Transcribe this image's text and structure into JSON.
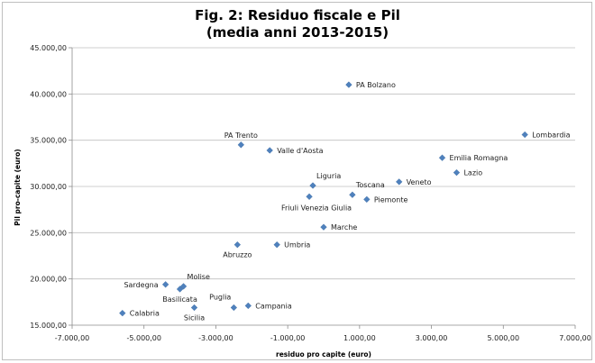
{
  "chart_data": {
    "type": "scatter",
    "title": "Fig. 2: Residuo fiscale e Pil",
    "subtitle": "(media anni 2013-2015)",
    "xlabel": "residuo pro capite (euro)",
    "ylabel": "Pil pro-capite (euro)",
    "xlim": [
      -7000,
      7000
    ],
    "ylim": [
      15000,
      45000
    ],
    "xticks": [
      -7000,
      -5000,
      -3000,
      -1000,
      1000,
      3000,
      5000,
      7000
    ],
    "xtick_labels": [
      "-7.000,00",
      "-5.000,00",
      "-3.000,00",
      "-1.000,00",
      "1.000,00",
      "3.000,00",
      "5.000,00",
      "7.000,00"
    ],
    "yticks": [
      15000,
      20000,
      25000,
      30000,
      35000,
      40000,
      45000
    ],
    "ytick_labels": [
      "15.000,00",
      "20.000,00",
      "25.000,00",
      "30.000,00",
      "35.000,00",
      "40.000,00",
      "45.000,00"
    ],
    "grid": "horizontal",
    "marker": "diamond",
    "color": "#4f81bd",
    "points": [
      {
        "label": "PA Bolzano",
        "x": 700,
        "y": 41000,
        "pos": "right"
      },
      {
        "label": "Lombardia",
        "x": 5600,
        "y": 35600,
        "pos": "right"
      },
      {
        "label": "PA Trento",
        "x": -2300,
        "y": 34500,
        "pos": "above"
      },
      {
        "label": "Valle d'Aosta",
        "x": -1500,
        "y": 33900,
        "pos": "right"
      },
      {
        "label": "Emilia Romagna",
        "x": 3300,
        "y": 33100,
        "pos": "right"
      },
      {
        "label": "Lazio",
        "x": 3700,
        "y": 31500,
        "pos": "right"
      },
      {
        "label": "Veneto",
        "x": 2100,
        "y": 30500,
        "pos": "right"
      },
      {
        "label": "Liguria",
        "x": -300,
        "y": 30100,
        "pos": "aboveright"
      },
      {
        "label": "Toscana",
        "x": 800,
        "y": 29100,
        "pos": "aboveright"
      },
      {
        "label": "Piemonte",
        "x": 1200,
        "y": 28600,
        "pos": "right"
      },
      {
        "label": "Friuli Venezia Giulia",
        "x": -400,
        "y": 28900,
        "pos": "belowcenter"
      },
      {
        "label": "Marche",
        "x": 0,
        "y": 25600,
        "pos": "right"
      },
      {
        "label": "Abruzzo",
        "x": -2400,
        "y": 23700,
        "pos": "below"
      },
      {
        "label": "Umbria",
        "x": -1300,
        "y": 23700,
        "pos": "right"
      },
      {
        "label": "Sardegna",
        "x": -4400,
        "y": 19400,
        "pos": "left"
      },
      {
        "label": "Molise",
        "x": -3900,
        "y": 19200,
        "pos": "aboveright"
      },
      {
        "label": "Basilicata",
        "x": -4000,
        "y": 18900,
        "pos": "below"
      },
      {
        "label": "Puglia",
        "x": -2500,
        "y": 16900,
        "pos": "aboveleft"
      },
      {
        "label": "Campania",
        "x": -2100,
        "y": 17100,
        "pos": "right"
      },
      {
        "label": "Sicilia",
        "x": -3600,
        "y": 16900,
        "pos": "below"
      },
      {
        "label": "Calabria",
        "x": -5600,
        "y": 16300,
        "pos": "right"
      }
    ]
  }
}
